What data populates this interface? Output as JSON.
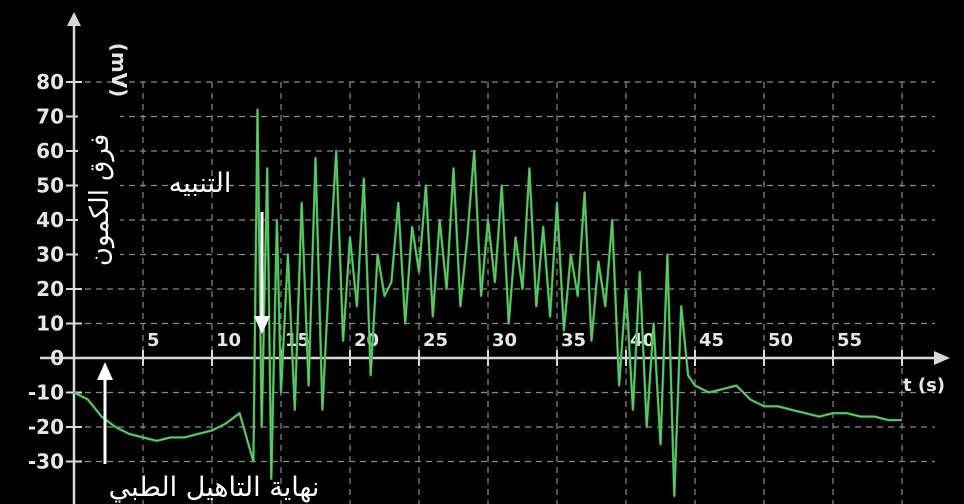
{
  "chart_data": {
    "type": "line",
    "ylabel": "فرق الكمون",
    "y_unit": "(mV)",
    "xlabel_symbol": "t (s)",
    "xlim": [
      0,
      60
    ],
    "ylim": [
      -30,
      80
    ],
    "x_ticks": [
      "5",
      "10",
      "15",
      "20",
      "25",
      "30",
      "35",
      "40",
      "45",
      "50",
      "55"
    ],
    "y_ticks": [
      "80",
      "70",
      "60",
      "50",
      "40",
      "30",
      "20",
      "10",
      "0",
      "-10",
      "-20",
      "-30"
    ],
    "grid": true,
    "line_color": "#3fb24a",
    "annotations": {
      "stimulus": {
        "text": "التنبيه",
        "x": 12
      },
      "rehab_end": {
        "text": "نهاية التاهيل الطبي",
        "x": 0.5
      }
    },
    "series": [
      {
        "x": [
          0,
          1,
          2,
          3,
          4,
          5,
          6,
          7,
          8,
          9,
          10,
          11,
          12,
          13,
          13.3,
          13.6,
          14,
          14.3,
          14.7,
          15,
          15.5,
          16,
          16.5,
          17,
          17.5,
          18,
          18.5,
          19,
          19.5,
          20,
          20.5,
          21,
          21.5,
          22,
          22.5,
          23,
          23.5,
          24,
          24.5,
          25,
          25.5,
          26,
          26.5,
          27,
          27.5,
          28,
          28.5,
          29,
          29.5,
          30,
          30.5,
          31,
          31.5,
          32,
          32.5,
          33,
          33.5,
          34,
          34.5,
          35,
          35.5,
          36,
          36.5,
          37,
          37.5,
          38,
          38.5,
          39,
          39.5,
          40,
          40.5,
          41,
          41.5,
          42,
          42.5,
          43,
          43.5,
          44,
          44.5,
          45,
          46,
          47,
          48,
          49,
          50,
          51,
          52,
          53,
          54,
          55,
          56,
          57,
          58,
          59,
          60
        ],
        "y": [
          -10,
          -12,
          -17,
          -20,
          -22,
          -23,
          -24,
          -23,
          -23,
          -22,
          -21,
          -19,
          -16,
          -30,
          72,
          -20,
          55,
          -35,
          40,
          -10,
          30,
          -15,
          45,
          -8,
          58,
          -15,
          25,
          60,
          5,
          35,
          15,
          52,
          -5,
          30,
          18,
          22,
          45,
          10,
          38,
          25,
          50,
          12,
          40,
          20,
          55,
          15,
          35,
          60,
          18,
          40,
          22,
          50,
          10,
          35,
          20,
          55,
          15,
          38,
          12,
          45,
          8,
          30,
          18,
          48,
          5,
          28,
          15,
          40,
          -8,
          20,
          -15,
          25,
          -20,
          10,
          -25,
          30,
          -40,
          15,
          -5,
          -8,
          -10,
          -9,
          -8,
          -12,
          -14,
          -14,
          -15,
          -16,
          -17,
          -16,
          -16,
          -17,
          -17,
          -18,
          -18
        ]
      }
    ]
  }
}
